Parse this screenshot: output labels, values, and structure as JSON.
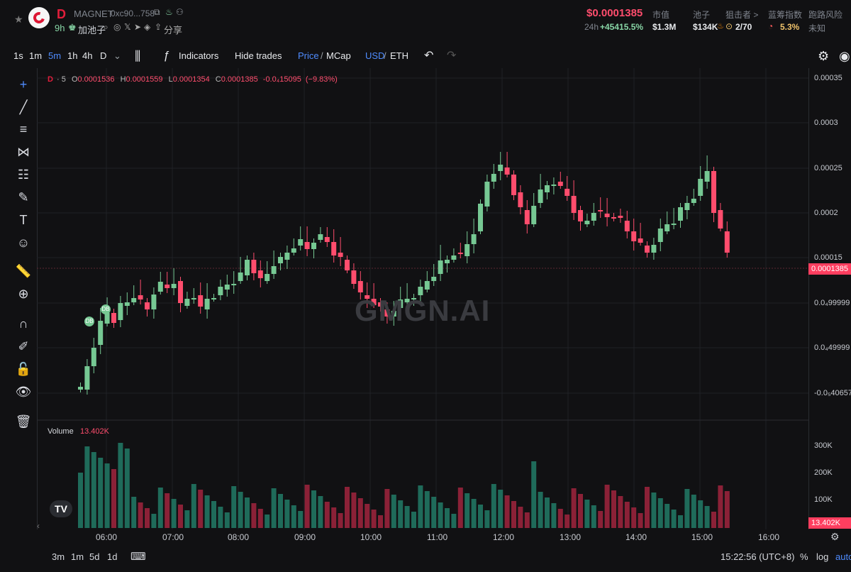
{
  "header": {
    "name": "MAGNET",
    "address": "0xc90...758",
    "age": "9h",
    "pool": "加池子",
    "share": "分享",
    "price": "$0.0001385",
    "change_label": "24h",
    "change_value": "+45415.5%",
    "metrics": [
      {
        "label": "市值",
        "value": "$1.3M"
      },
      {
        "label": "池子",
        "value": "$134K"
      },
      {
        "label": "狙击者 >",
        "value": "2/70"
      },
      {
        "label": "蓝筹指数",
        "value": "5.3%"
      },
      {
        "label": "跑路风险",
        "value": "未知"
      }
    ]
  },
  "toolbar": {
    "intervals": [
      "1s",
      "1m",
      "5m",
      "1h",
      "4h",
      "D"
    ],
    "indicators": "Indicators",
    "hide_trades": "Hide trades",
    "price": "Price",
    "mcap": "MCap",
    "usd": "USD",
    "eth": "ETH"
  },
  "chart": {
    "interval_label": "5",
    "o_label": "O",
    "o": "0.0001536",
    "h_label": "H",
    "h": "0.0001559",
    "l_label": "L",
    "l": "0.0001354",
    "c_label": "C",
    "c": "0.0001385",
    "delta": "-0.0₄15095",
    "delta_pct": "(−9.83%)",
    "watermark": "GMGN.AI",
    "volume_label": "Volume",
    "volume_value": "13.402K",
    "current_price_tag": "0.0001385",
    "current_volume_tag": "13.402K",
    "timestamp": "15:22:56 (UTC+8)",
    "badges": [
      "DB",
      "DB"
    ]
  },
  "bottom": {
    "ranges": [
      "3m",
      "1m",
      "5d",
      "1d"
    ],
    "percent": "%",
    "log": "log",
    "auto": "auto"
  },
  "chart_data": {
    "type": "candlestick",
    "x_labels": [
      "06:00",
      "07:00",
      "08:00",
      "09:00",
      "10:00",
      "11:00",
      "12:00",
      "13:00",
      "14:00",
      "15:00",
      "16:00"
    ],
    "y_ticks": [
      "0.00035",
      "0.0003",
      "0.00025",
      "0.0002",
      "0.00015",
      "0.0₄99999",
      "0.0₄49999",
      "-0.0₅40657"
    ],
    "volume_ticks": [
      "300K",
      "200K",
      "100K"
    ]
  }
}
